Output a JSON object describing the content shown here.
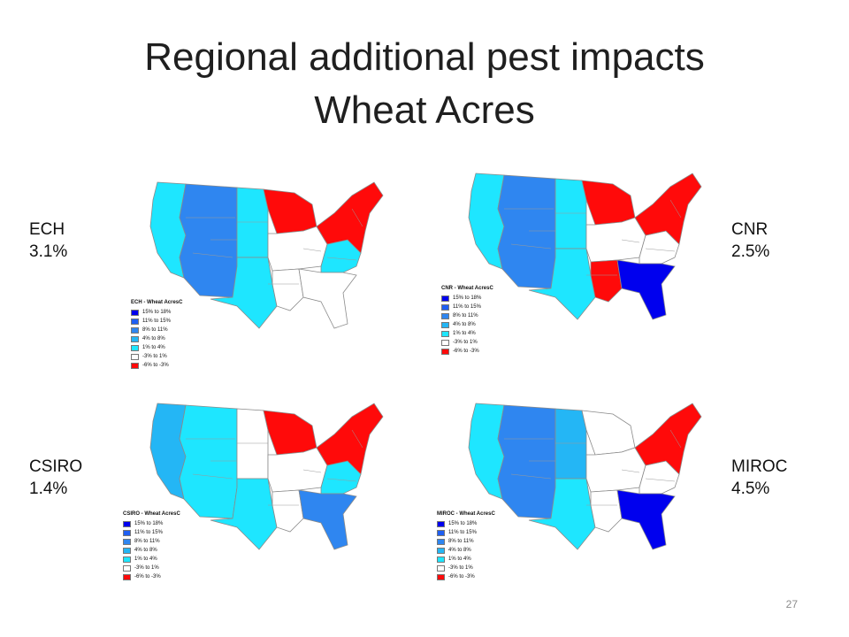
{
  "title": {
    "line1": "Regional additional pest impacts",
    "line2": "Wheat Acres"
  },
  "page_number": "27",
  "colors": {
    "c1": "#0000ee",
    "c2": "#1f5ff2",
    "c3": "#2f86f0",
    "c4": "#24b6f5",
    "c5": "#1ee6ff",
    "c6": "#ffffff",
    "c7": "#ff0a0a"
  },
  "legend_items": [
    {
      "label": "15% to 18%",
      "color": "#0000ee"
    },
    {
      "label": "11% to 15%",
      "color": "#1f5ff2"
    },
    {
      "label": "8% to 11%",
      "color": "#2f86f0"
    },
    {
      "label": "4% to 8%",
      "color": "#24b6f5"
    },
    {
      "label": "1% to 4%",
      "color": "#1ee6ff"
    },
    {
      "label": "-3% to 1%",
      "color": "#ffffff"
    },
    {
      "label": "-6% to -3%",
      "color": "#ff0a0a"
    }
  ],
  "maps": [
    {
      "model": "ECH",
      "value": "3.1%",
      "legend_title": "ECH - Wheat AcresC",
      "regions": {
        "pac": "c5",
        "mtn": "c3",
        "npl": "c5",
        "spl": "c5",
        "lkst": "c7",
        "cbelt": "c6",
        "app": "c5",
        "delta": "c6",
        "seast": "c6",
        "neast": "c7"
      }
    },
    {
      "model": "CNR",
      "value": "2.5%",
      "legend_title": "CNR - Wheat AcresC",
      "regions": {
        "pac": "c5",
        "mtn": "c3",
        "npl": "c5",
        "spl": "c5",
        "lkst": "c7",
        "cbelt": "c6",
        "app": "c6",
        "delta": "c7",
        "seast": "c1",
        "neast": "c7"
      }
    },
    {
      "model": "CSIRO",
      "value": "1.4%",
      "legend_title": "CSIRO - Wheat AcresC",
      "regions": {
        "pac": "c4",
        "mtn": "c5",
        "npl": "c6",
        "spl": "c5",
        "lkst": "c7",
        "cbelt": "c6",
        "app": "c5",
        "delta": "c6",
        "seast": "c3",
        "neast": "c7"
      }
    },
    {
      "model": "MIROC",
      "value": "4.5%",
      "legend_title": "MIROC - Wheat AcresC",
      "regions": {
        "pac": "c5",
        "mtn": "c3",
        "npl": "c4",
        "spl": "c5",
        "lkst": "c6",
        "cbelt": "c6",
        "app": "c6",
        "delta": "c6",
        "seast": "c1",
        "neast": "c7"
      }
    }
  ]
}
